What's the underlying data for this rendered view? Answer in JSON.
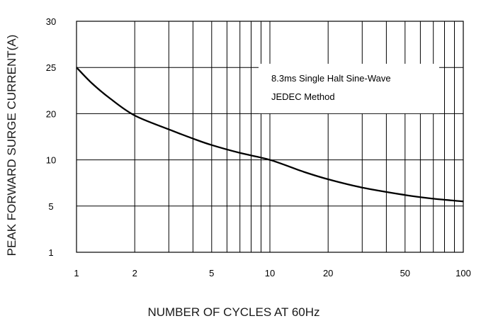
{
  "chart_data": {
    "type": "line",
    "title": "",
    "xlabel": "NUMBER OF CYCLES AT 60Hz",
    "ylabel": "PEAK  FORWARD SURGE CURRENT(A)",
    "x_scale": "log",
    "xlim": [
      1,
      100
    ],
    "ylim": [
      1,
      30
    ],
    "grid": true,
    "x_ticks": [
      1,
      2,
      5,
      10,
      20,
      50,
      100
    ],
    "x_tick_labels": [
      "1",
      "2",
      "5",
      "10",
      "20",
      "50",
      "100"
    ],
    "y_ticks": [
      1,
      5,
      10,
      20,
      25,
      30
    ],
    "y_tick_labels": [
      "1",
      "5",
      "10",
      "20",
      "25",
      "30"
    ],
    "annotations": [
      "8.3ms Single Halt Sine-Wave",
      "JEDEC Method"
    ],
    "series": [
      {
        "x": [
          1,
          1.2,
          1.5,
          2,
          3,
          4,
          5,
          7,
          10,
          15,
          20,
          30,
          50,
          70,
          100
        ],
        "y": [
          25,
          23.3,
          21.6,
          19.6,
          16.6,
          14.6,
          13.2,
          11.5,
          10.0,
          8.7,
          7.9,
          7.0,
          6.2,
          5.8,
          5.5
        ]
      }
    ]
  }
}
